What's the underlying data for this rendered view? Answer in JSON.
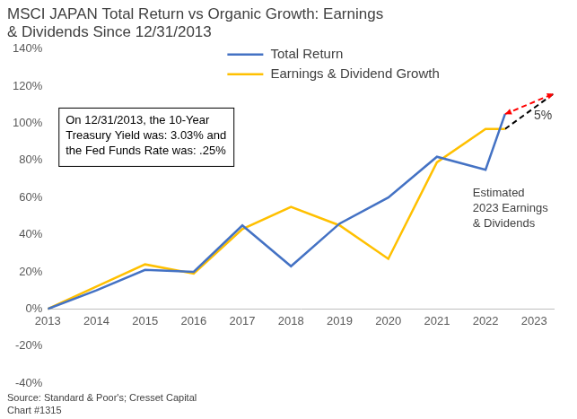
{
  "chart_data": {
    "type": "line",
    "title": [
      "MSCI JAPAN Total Return vs Organic Growth: Earnings",
      "& Dividends Since 12/31/2013"
    ],
    "x": [
      2013,
      2014,
      2015,
      2016,
      2017,
      2018,
      2019,
      2020,
      2021,
      2022,
      2022.4
    ],
    "series": [
      {
        "name": "Total Return",
        "color": "#4472c4",
        "values": [
          0,
          10,
          21,
          20,
          45,
          23,
          46,
          60,
          82,
          75,
          105
        ]
      },
      {
        "name": "Earnings & Dividend Growth",
        "color": "#ffc000",
        "values": [
          0,
          12,
          24,
          19,
          43,
          55,
          45,
          27,
          79,
          97,
          97
        ]
      },
      {
        "x": [
          2022.4,
          2023.4
        ],
        "values": [
          97,
          116
        ],
        "color": "#000000",
        "line_style": "dashed"
      },
      {
        "x": [
          2022.4,
          2023.4
        ],
        "values": [
          105,
          116
        ],
        "color": "#ff0000",
        "line_style": "dashed",
        "marker": "arrow"
      }
    ],
    "xlim": [
      2013,
      2023.4
    ],
    "xticks": [
      2013,
      2014,
      2015,
      2016,
      2017,
      2018,
      2019,
      2020,
      2021,
      2022,
      2023
    ],
    "ylim": [
      -40,
      140
    ],
    "yticks": [
      {
        "value": -40,
        "label": "-40%"
      },
      {
        "value": -20,
        "label": "-20%"
      },
      {
        "value": 0,
        "label": "0%"
      },
      {
        "value": 20,
        "label": "20%"
      },
      {
        "value": 40,
        "label": "40%"
      },
      {
        "value": 60,
        "label": "60%"
      },
      {
        "value": 80,
        "label": "80%"
      },
      {
        "value": 100,
        "label": "100%"
      },
      {
        "value": 120,
        "label": "120%"
      },
      {
        "value": 140,
        "label": "140%"
      }
    ],
    "grid": false,
    "legend": "top",
    "annotations": [
      {
        "text": [
          "On 12/31/2013, the 10-Year",
          "Treasury Yield was: 3.03% and",
          "the Fed Funds Rate was: .25%"
        ]
      },
      {
        "text": [
          "Estimated",
          "2023 Earnings",
          "& Dividends"
        ]
      },
      {
        "text": "5%"
      }
    ],
    "source": [
      "Source: Standard & Poor's; Cresset Capital",
      "Chart #1315"
    ]
  }
}
